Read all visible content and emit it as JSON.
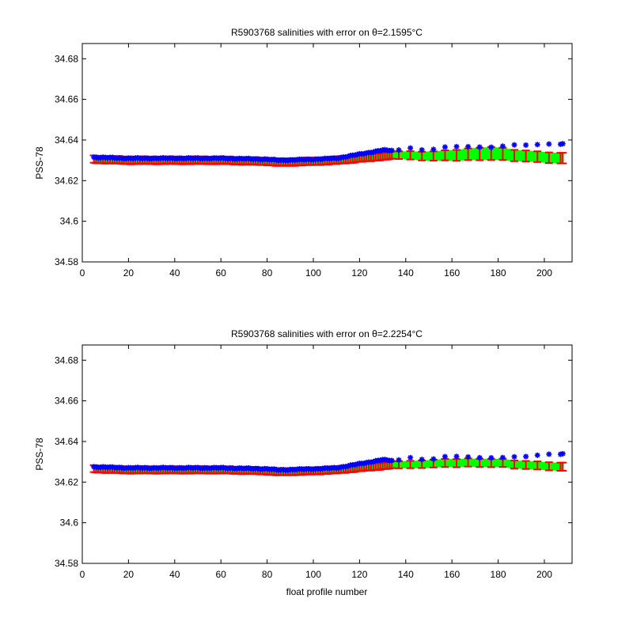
{
  "colors": {
    "background": "#ffffff",
    "axes": "#000000",
    "raw": "#0000ff",
    "calibrated": "#ff0000",
    "error_band": "#00ff00"
  },
  "x_tick_labels": [
    "0",
    "20",
    "40",
    "60",
    "80",
    "100",
    "120",
    "140",
    "160",
    "180",
    "200"
  ],
  "y_tick_labels": [
    "34.58",
    "34.6",
    "34.62",
    "34.64",
    "34.66",
    "34.68"
  ],
  "chart_data": [
    {
      "type": "scatter",
      "title": "R5903768 salinities with error on θ=2.1595°C",
      "xlabel": "",
      "ylabel": "PSS-78",
      "xlim": [
        0,
        212
      ],
      "ylim": [
        34.58,
        34.6875
      ],
      "grid": false,
      "x_range_profiles": [
        5,
        208
      ],
      "knots": {
        "x": [
          5,
          20,
          40,
          60,
          80,
          85,
          100,
          110,
          120,
          130,
          135,
          140,
          150,
          160,
          170,
          177,
          187,
          200,
          208
        ],
        "raw": [
          34.6315,
          34.631,
          34.631,
          34.631,
          34.6305,
          34.63,
          34.6305,
          34.631,
          34.633,
          34.635,
          34.6348,
          34.636,
          34.635,
          34.637,
          34.6365,
          34.6365,
          34.6375,
          34.6378,
          34.6382
        ],
        "cal": [
          34.6305,
          34.63,
          34.63,
          34.63,
          34.6295,
          34.629,
          34.6295,
          34.63,
          34.631,
          34.632,
          34.6325,
          34.6325,
          34.632,
          34.6325,
          34.633,
          34.6335,
          34.6325,
          34.6315,
          34.631
        ],
        "err": [
          0.0018,
          0.0018,
          0.0018,
          0.0018,
          0.0018,
          0.0018,
          0.0018,
          0.0018,
          0.0018,
          0.0018,
          0.0018,
          0.002,
          0.0022,
          0.0026,
          0.003,
          0.0032,
          0.0028,
          0.0026,
          0.0026
        ]
      },
      "series": [
        {
          "name": "",
          "style": "blue asterisks",
          "role": "raw"
        },
        {
          "name": "",
          "style": "red error bars",
          "role": "cal"
        },
        {
          "name": "",
          "style": "green error band",
          "role": "band"
        }
      ]
    },
    {
      "type": "scatter",
      "title": "R5903768 salinities with error on θ=2.2254°C",
      "xlabel": "float profile number",
      "ylabel": "PSS-78",
      "xlim": [
        0,
        212
      ],
      "ylim": [
        34.58,
        34.6875
      ],
      "grid": false,
      "x_range_profiles": [
        5,
        208
      ],
      "knots": {
        "x": [
          5,
          20,
          40,
          60,
          80,
          85,
          100,
          110,
          120,
          130,
          135,
          140,
          150,
          160,
          170,
          180,
          190,
          200,
          208
        ],
        "raw": [
          34.6275,
          34.627,
          34.627,
          34.627,
          34.6265,
          34.626,
          34.6265,
          34.627,
          34.629,
          34.631,
          34.6305,
          34.632,
          34.631,
          34.633,
          34.632,
          34.632,
          34.6325,
          34.6335,
          34.634
        ],
        "cal": [
          34.6265,
          34.626,
          34.626,
          34.626,
          34.6255,
          34.625,
          34.6255,
          34.626,
          34.627,
          34.628,
          34.6285,
          34.6285,
          34.629,
          34.6295,
          34.6295,
          34.6295,
          34.6285,
          34.628,
          34.6275
        ],
        "err": [
          0.0017,
          0.0017,
          0.0017,
          0.0017,
          0.0017,
          0.0017,
          0.0017,
          0.0017,
          0.0017,
          0.0017,
          0.0017,
          0.0018,
          0.0019,
          0.002,
          0.002,
          0.002,
          0.002,
          0.002,
          0.002
        ]
      },
      "series": [
        {
          "name": "",
          "style": "blue asterisks",
          "role": "raw"
        },
        {
          "name": "",
          "style": "red error bars",
          "role": "cal"
        },
        {
          "name": "",
          "style": "green error band",
          "role": "band"
        }
      ]
    }
  ]
}
